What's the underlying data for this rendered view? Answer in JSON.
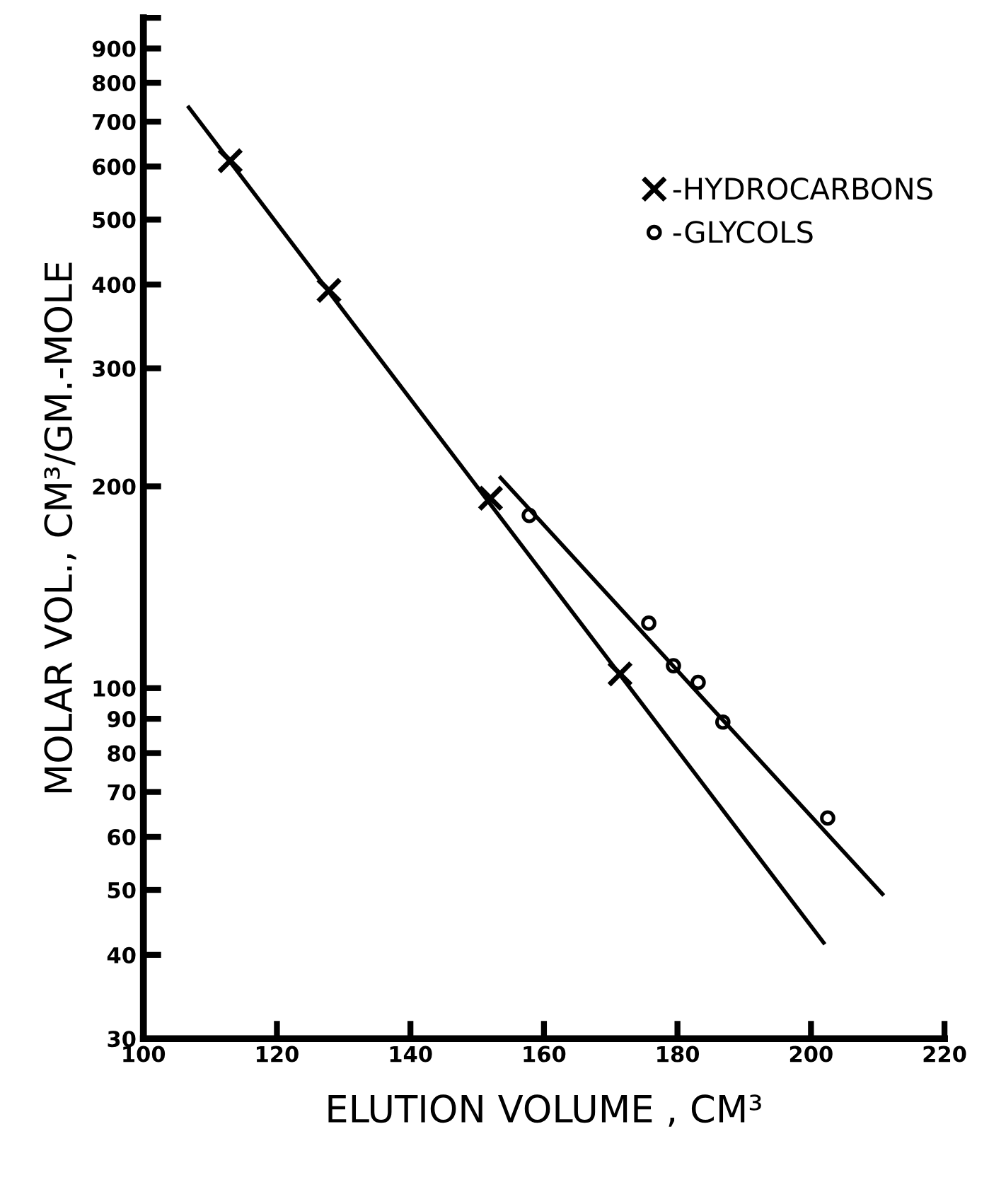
{
  "chart_data": {
    "type": "scatter",
    "xlabel": "ELUTION VOLUME , CM³",
    "ylabel": "MOLAR VOL., CM³/GM.-MOLE",
    "log": "y",
    "xlim": [
      100,
      220
    ],
    "ylim": [
      30,
      1000
    ],
    "xticks": [
      100,
      120,
      140,
      160,
      180,
      200,
      220
    ],
    "yticks": [
      30,
      40,
      50,
      60,
      70,
      80,
      90,
      100,
      200,
      300,
      400,
      500,
      600,
      700,
      800,
      900,
      {
        "value": 1000,
        "label": null
      }
    ],
    "grid": false,
    "legend": "top right",
    "series": [
      {
        "name": "-HYDROCARBONS",
        "marker": "cross",
        "color": "#000000",
        "x": [
          113,
          127.8,
          152,
          171.4
        ],
        "values": [
          612,
          392,
          192,
          105
        ]
      },
      {
        "name": "-GLYCOLS",
        "marker": "circle",
        "color": "#000000",
        "x": [
          157.8,
          175.7,
          179.4,
          183.1,
          186.8,
          202.5
        ],
        "values": [
          181,
          125,
          108,
          102,
          89,
          64
        ]
      },
      {
        "type": "line",
        "marker": "none",
        "line_style": "solid",
        "color": "#000000",
        "x": [
          106.8,
          201.9
        ],
        "values": [
          735,
          41.7
        ]
      },
      {
        "type": "line",
        "marker": "none",
        "line_style": "solid",
        "color": "#000000",
        "x": [
          153.5,
          210.7
        ],
        "values": [
          206,
          49.3
        ]
      }
    ]
  }
}
